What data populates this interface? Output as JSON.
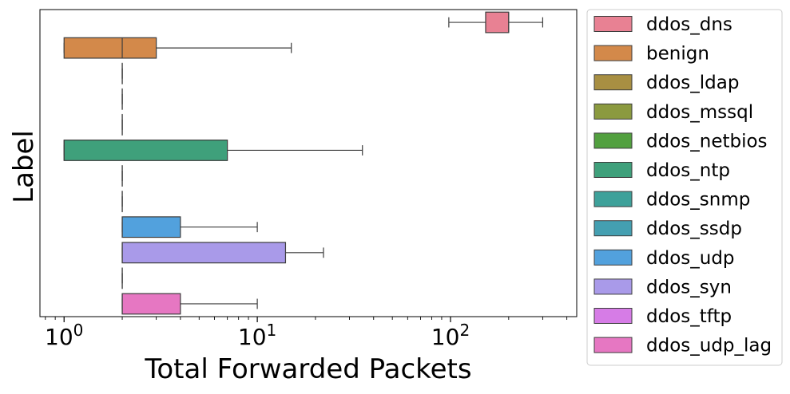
{
  "chart_data": {
    "type": "boxplot",
    "orientation": "horizontal",
    "xlabel": "Total Forwarded Packets",
    "ylabel": "Label",
    "xscale": "log",
    "xlim": [
      0.75,
      450
    ],
    "x_ticks": [
      {
        "value": 1,
        "base": "10",
        "exp": "0"
      },
      {
        "value": 10,
        "base": "10",
        "exp": "1"
      },
      {
        "value": 100,
        "base": "10",
        "exp": "2"
      }
    ],
    "legend_position": "outside-right",
    "categories": [
      "ddos_dns",
      "benign",
      "ddos_ldap",
      "ddos_mssql",
      "ddos_netbios",
      "ddos_ntp",
      "ddos_snmp",
      "ddos_ssdp",
      "ddos_udp",
      "ddos_syn",
      "ddos_tftp",
      "ddos_udp_lag"
    ],
    "colors": [
      "#e88193",
      "#d3894a",
      "#a88f42",
      "#8b9a3f",
      "#52a03f",
      "#3fa07b",
      "#3ea19a",
      "#449fb1",
      "#52a1dd",
      "#a99ae9",
      "#d67ce6",
      "#e677c2"
    ],
    "boxes": [
      {
        "label": "ddos_dns",
        "whislo": 98,
        "q1": 152,
        "med": 200,
        "q3": 200,
        "whishi": 300
      },
      {
        "label": "benign",
        "whislo": 1,
        "q1": 1,
        "med": 2,
        "q3": 3,
        "whishi": 15
      },
      {
        "label": "ddos_ldap",
        "whislo": 2,
        "q1": 2,
        "med": 2,
        "q3": 2,
        "whishi": 2
      },
      {
        "label": "ddos_mssql",
        "whislo": 2,
        "q1": 2,
        "med": 2,
        "q3": 2,
        "whishi": 2
      },
      {
        "label": "ddos_netbios",
        "whislo": 2,
        "q1": 2,
        "med": 2,
        "q3": 2,
        "whishi": 2
      },
      {
        "label": "ddos_ntp",
        "whislo": 1,
        "q1": 1,
        "med": 1,
        "q3": 7,
        "whishi": 35
      },
      {
        "label": "ddos_snmp",
        "whislo": 2,
        "q1": 2,
        "med": 2,
        "q3": 2,
        "whishi": 2
      },
      {
        "label": "ddos_ssdp",
        "whislo": 2,
        "q1": 2,
        "med": 2,
        "q3": 2,
        "whishi": 2
      },
      {
        "label": "ddos_udp",
        "whislo": 2,
        "q1": 2,
        "med": 2,
        "q3": 4,
        "whishi": 10
      },
      {
        "label": "ddos_syn",
        "whislo": 2,
        "q1": 2,
        "med": 2,
        "q3": 14,
        "whishi": 22
      },
      {
        "label": "ddos_tftp",
        "whislo": 2,
        "q1": 2,
        "med": 2,
        "q3": 2,
        "whishi": 2
      },
      {
        "label": "ddos_udp_lag",
        "whislo": 2,
        "q1": 2,
        "med": 2,
        "q3": 4,
        "whishi": 10
      }
    ]
  }
}
